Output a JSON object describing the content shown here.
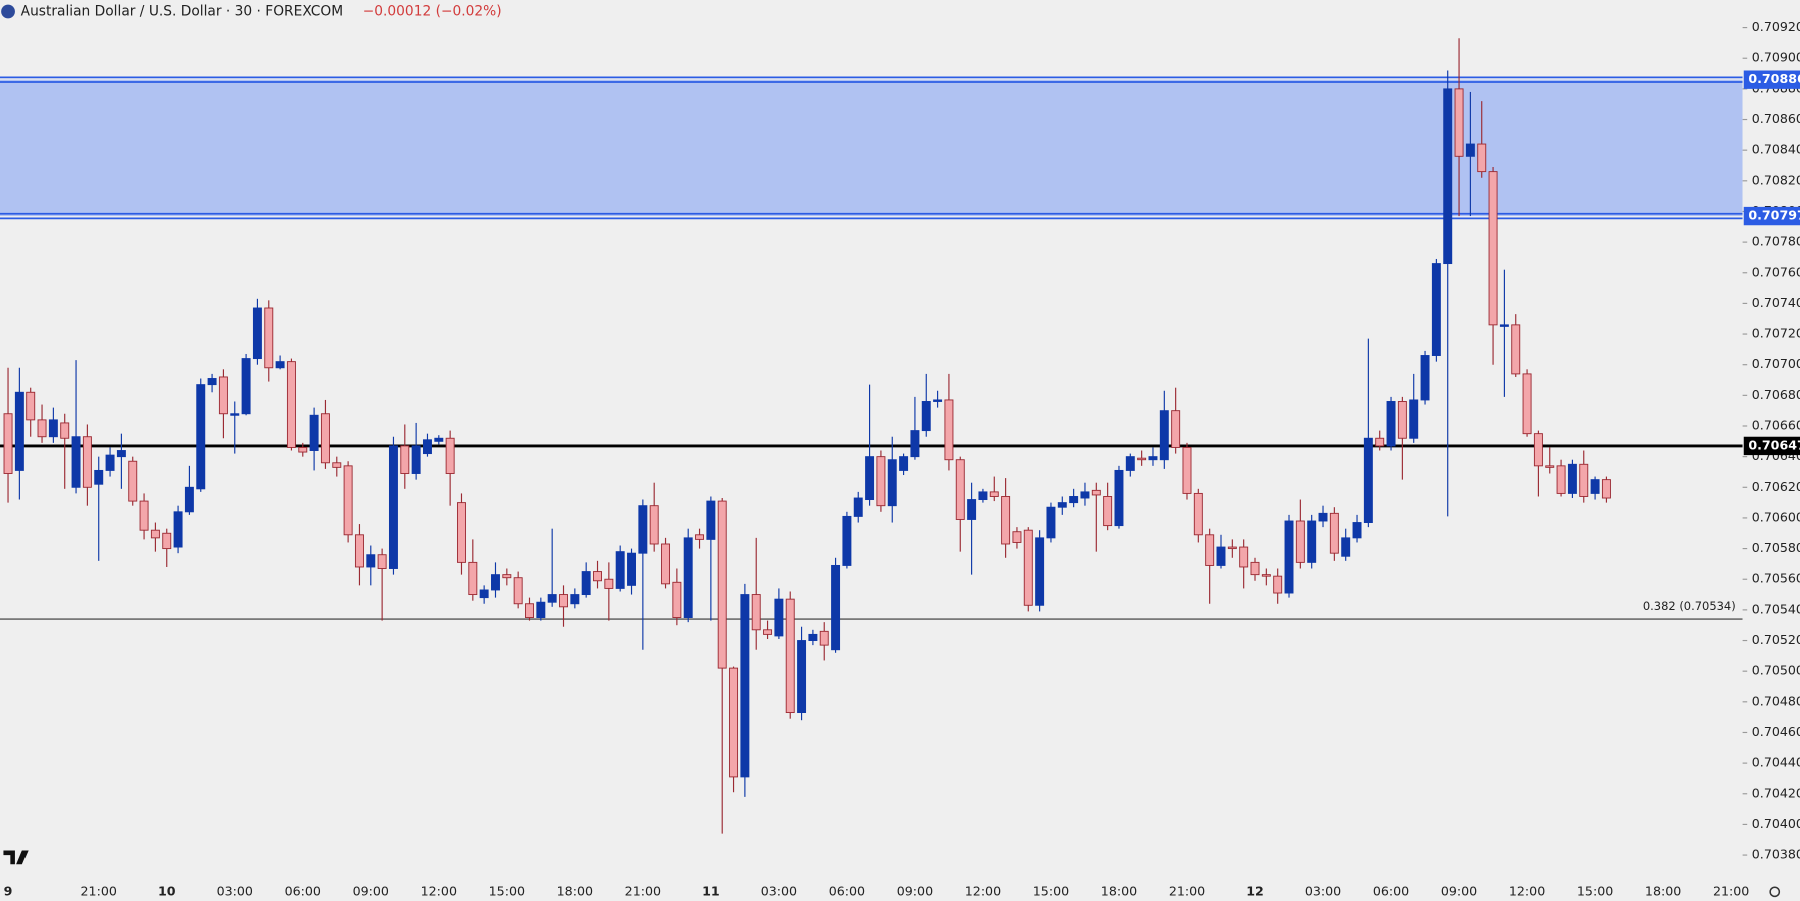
{
  "chart_data": {
    "type": "candlestick",
    "title": "Australian Dollar / U.S. Dollar · 30 · FOREXCOM",
    "change": "−0.00012 (−0.02%)",
    "categories": [
      "9",
      null,
      null,
      null,
      null,
      null,
      null,
      null,
      "21:00",
      null,
      null,
      null,
      null,
      null,
      "10",
      null,
      null,
      null,
      null,
      null,
      "03:00",
      null,
      null,
      null,
      null,
      null,
      "06:00",
      null,
      null,
      null,
      null,
      null,
      "09:00",
      null,
      null,
      null,
      null,
      null,
      "12:00",
      null,
      null,
      null,
      null,
      null,
      "15:00",
      null,
      null,
      null,
      null,
      null,
      "18:00",
      null,
      null,
      null,
      null,
      null,
      "21:00",
      null,
      null,
      null,
      null,
      null,
      "11",
      null,
      null,
      null,
      null,
      null,
      "03:00",
      null,
      null,
      null,
      null,
      null,
      "06:00",
      null,
      null,
      null,
      null,
      null,
      "09:00",
      null,
      null,
      null,
      null,
      null,
      "12:00",
      null,
      null,
      null,
      null,
      null,
      "15:00",
      null,
      null,
      null,
      null,
      null,
      "18:00",
      null,
      null,
      null,
      null,
      null,
      "21:00",
      null,
      null,
      null,
      null,
      null,
      "12",
      null,
      null,
      null,
      null,
      null,
      "03:00",
      null,
      null,
      null,
      null,
      null,
      "06:00",
      null,
      null,
      null,
      null,
      null,
      "09:00",
      null,
      null,
      null,
      null,
      null,
      "12:00",
      null,
      null,
      null,
      null,
      null,
      "15:00",
      null,
      null,
      null,
      null,
      null,
      "18:00",
      null,
      null,
      null,
      null,
      null,
      "21:00"
    ],
    "open": [
      0.70668,
      0.70631,
      0.70682,
      0.70664,
      0.70653,
      0.70662,
      0.7062,
      0.70653,
      0.70622,
      0.70631,
      0.7064,
      0.70637,
      0.70611,
      0.70592,
      0.7059,
      0.70581,
      0.70604,
      0.70619,
      0.70687,
      0.70692,
      0.70667,
      0.70668,
      0.70704,
      0.70737,
      0.70698,
      0.70702,
      0.70646,
      0.70644,
      0.70668,
      0.70636,
      0.70634,
      0.70589,
      0.70568,
      0.70576,
      0.70567,
      0.70647,
      0.70629,
      0.70642,
      0.7065,
      0.70652,
      0.7061,
      0.70571,
      0.70548,
      0.70553,
      0.70563,
      0.70561,
      0.70544,
      0.70535,
      0.70545,
      0.7055,
      0.70544,
      0.7055,
      0.70565,
      0.7056,
      0.70554,
      0.70556,
      0.70577,
      0.70608,
      0.70583,
      0.70558,
      0.70535,
      0.70589,
      0.70586,
      0.70611,
      0.70502,
      0.70431,
      0.7055,
      0.70527,
      0.70523,
      0.70547,
      0.70473,
      0.7052,
      0.70526,
      0.70514,
      0.70569,
      0.70601,
      0.70612,
      0.7064,
      0.70608,
      0.70631,
      0.7064,
      0.70657,
      0.70676,
      0.70677,
      0.70638,
      0.70599,
      0.70612,
      0.70617,
      0.70614,
      0.70591,
      0.70592,
      0.70543,
      0.70587,
      0.70607,
      0.7061,
      0.70613,
      0.70618,
      0.70614,
      0.70595,
      0.70631,
      0.70639,
      0.70638,
      0.70638,
      0.7067,
      0.70646,
      0.70616,
      0.70589,
      0.70569,
      0.70581,
      0.70581,
      0.70571,
      0.70563,
      0.70562,
      0.70551,
      0.70598,
      0.70571,
      0.70598,
      0.70603,
      0.70575,
      0.70587,
      0.70597,
      0.70652,
      0.70647,
      0.70676,
      0.70652,
      0.70677,
      0.70706,
      0.70766,
      0.7088,
      0.70836,
      0.70844,
      0.70826,
      0.70725,
      0.70726,
      0.70694,
      0.70655,
      0.70634,
      0.70634,
      0.70616,
      0.70635,
      0.70616,
      0.70625,
      null,
      null,
      null,
      null,
      null,
      null,
      null,
      null,
      null,
      null,
      null
    ],
    "high": [
      0.70698,
      0.70698,
      0.70685,
      0.70674,
      0.70672,
      0.70668,
      0.70703,
      0.70661,
      0.7064,
      0.70646,
      0.70655,
      0.7064,
      0.70616,
      0.70597,
      0.70593,
      0.70608,
      0.70634,
      0.70691,
      0.70694,
      0.70697,
      0.70676,
      0.70707,
      0.70743,
      0.70742,
      0.70706,
      0.70704,
      0.70649,
      0.70672,
      0.70677,
      0.7064,
      0.70637,
      0.70596,
      0.70582,
      0.7058,
      0.70653,
      0.70661,
      0.70662,
      0.70655,
      0.70654,
      0.70657,
      0.70616,
      0.70586,
      0.70556,
      0.70571,
      0.70567,
      0.70565,
      0.70548,
      0.70548,
      0.70593,
      0.70556,
      0.70554,
      0.70571,
      0.70572,
      0.70571,
      0.70582,
      0.7058,
      0.70612,
      0.70623,
      0.70587,
      0.70567,
      0.70593,
      0.70593,
      0.70614,
      0.70613,
      0.70503,
      0.70557,
      0.70587,
      0.70533,
      0.70554,
      0.70552,
      0.70529,
      0.70527,
      0.70532,
      0.70574,
      0.70604,
      0.70617,
      0.70687,
      0.70644,
      0.70653,
      0.70642,
      0.70679,
      0.70694,
      0.70683,
      0.70694,
      0.7064,
      0.70623,
      0.70619,
      0.70627,
      0.70626,
      0.70594,
      0.70594,
      0.70592,
      0.7061,
      0.70614,
      0.70619,
      0.70623,
      0.70623,
      0.70623,
      0.70634,
      0.70642,
      0.70644,
      0.70646,
      0.70683,
      0.70685,
      0.70649,
      0.70619,
      0.70593,
      0.70589,
      0.70586,
      0.70586,
      0.70574,
      0.70567,
      0.70567,
      0.70602,
      0.70612,
      0.70602,
      0.70608,
      0.70607,
      0.70593,
      0.70602,
      0.70717,
      0.70657,
      0.70679,
      0.70679,
      0.70694,
      0.70709,
      0.70769,
      0.70892,
      0.70913,
      0.70878,
      0.70872,
      0.70829,
      0.70762,
      0.70733,
      0.70697,
      0.70657,
      0.70646,
      0.70638,
      0.70638,
      0.70644,
      0.70627,
      0.70627,
      null,
      null,
      null,
      null,
      null,
      null,
      null,
      null,
      null,
      null,
      null
    ],
    "low": [
      0.7061,
      0.70612,
      0.70653,
      0.70649,
      0.70649,
      0.70619,
      0.70616,
      0.70608,
      0.70572,
      0.70627,
      0.70619,
      0.70608,
      0.70586,
      0.70578,
      0.70568,
      0.70577,
      0.70602,
      0.70617,
      0.70682,
      0.70652,
      0.70642,
      0.70667,
      0.707,
      0.70689,
      0.70697,
      0.70644,
      0.7064,
      0.70631,
      0.70632,
      0.70627,
      0.70584,
      0.70556,
      0.70556,
      0.70533,
      0.70563,
      0.70619,
      0.70625,
      0.7064,
      0.70648,
      0.70608,
      0.70563,
      0.70546,
      0.70544,
      0.70548,
      0.70556,
      0.70541,
      0.70533,
      0.70533,
      0.70542,
      0.70529,
      0.70541,
      0.70548,
      0.70554,
      0.70533,
      0.70552,
      0.7055,
      0.70514,
      0.70578,
      0.70554,
      0.7053,
      0.70532,
      0.7058,
      0.70533,
      0.70394,
      0.70421,
      0.70418,
      0.70514,
      0.70521,
      0.70521,
      0.70469,
      0.70468,
      0.70517,
      0.70507,
      0.70512,
      0.70567,
      0.70597,
      0.70608,
      0.70604,
      0.70597,
      0.70628,
      0.70638,
      0.70653,
      0.70672,
      0.70631,
      0.70578,
      0.70563,
      0.7061,
      0.70611,
      0.70574,
      0.7058,
      0.70539,
      0.70539,
      0.70584,
      0.70602,
      0.70607,
      0.70608,
      0.70578,
      0.70592,
      0.70593,
      0.70627,
      0.70634,
      0.70634,
      0.70632,
      0.70642,
      0.70612,
      0.70584,
      0.70544,
      0.70567,
      0.70574,
      0.70554,
      0.70559,
      0.70556,
      0.70544,
      0.70548,
      0.70567,
      0.70567,
      0.70594,
      0.70572,
      0.70572,
      0.70584,
      0.70594,
      0.70644,
      0.70644,
      0.70625,
      0.70649,
      0.70674,
      0.70702,
      0.70601,
      0.70797,
      0.70797,
      0.70822,
      0.707,
      0.70679,
      0.70692,
      0.70653,
      0.70614,
      0.70629,
      0.70614,
      0.70613,
      0.7061,
      0.70612,
      0.7061,
      null,
      null,
      null,
      null,
      null,
      null,
      null,
      null,
      null,
      null,
      null
    ],
    "close": [
      0.70629,
      0.70682,
      0.70664,
      0.70653,
      0.70664,
      0.70652,
      0.70653,
      0.7062,
      0.70631,
      0.70641,
      0.70644,
      0.70611,
      0.70592,
      0.70587,
      0.7058,
      0.70604,
      0.7062,
      0.70687,
      0.70691,
      0.70668,
      0.70668,
      0.70704,
      0.70737,
      0.70698,
      0.70702,
      0.70646,
      0.70643,
      0.70667,
      0.70636,
      0.70633,
      0.70589,
      0.70568,
      0.70576,
      0.70567,
      0.70647,
      0.70629,
      0.70647,
      0.70651,
      0.70652,
      0.70629,
      0.70571,
      0.7055,
      0.70553,
      0.70563,
      0.70561,
      0.70544,
      0.70535,
      0.70545,
      0.7055,
      0.70542,
      0.7055,
      0.70565,
      0.70559,
      0.70554,
      0.70578,
      0.70577,
      0.70608,
      0.70583,
      0.70557,
      0.70535,
      0.70587,
      0.70586,
      0.70611,
      0.70502,
      0.70431,
      0.7055,
      0.70527,
      0.70524,
      0.70547,
      0.70473,
      0.7052,
      0.70524,
      0.70517,
      0.70569,
      0.70601,
      0.70613,
      0.7064,
      0.70608,
      0.70638,
      0.7064,
      0.70657,
      0.70676,
      0.70677,
      0.70638,
      0.70599,
      0.70612,
      0.70617,
      0.70614,
      0.70583,
      0.70584,
      0.70543,
      0.70587,
      0.70607,
      0.7061,
      0.70614,
      0.70617,
      0.70615,
      0.70595,
      0.70631,
      0.7064,
      0.70638,
      0.7064,
      0.7067,
      0.70646,
      0.70616,
      0.70589,
      0.70569,
      0.70581,
      0.7058,
      0.70568,
      0.70563,
      0.70562,
      0.70551,
      0.70598,
      0.70571,
      0.70598,
      0.70603,
      0.70577,
      0.70587,
      0.70597,
      0.70652,
      0.70647,
      0.70676,
      0.70652,
      0.70677,
      0.70706,
      0.70766,
      0.7088,
      0.70836,
      0.70844,
      0.70826,
      0.70726,
      0.70726,
      0.70694,
      0.70655,
      0.70634,
      0.70633,
      0.70616,
      0.70635,
      0.70614,
      0.70625,
      0.70613,
      null,
      null,
      null,
      null,
      null,
      null,
      null,
      null,
      null,
      null,
      null
    ],
    "up_color": "#0e38a8",
    "down_color": "#f3a6aa",
    "down_line_color": "#9b2a33",
    "ylim": [
      0.70365,
      0.70938
    ],
    "yticks": [
      {
        "value": 0.7038,
        "label": "0.70380"
      },
      {
        "value": 0.704,
        "label": "0.70400"
      },
      {
        "value": 0.7042,
        "label": "0.70420"
      },
      {
        "value": 0.7044,
        "label": "0.70440"
      },
      {
        "value": 0.7046,
        "label": "0.70460"
      },
      {
        "value": 0.7048,
        "label": "0.70480"
      },
      {
        "value": 0.705,
        "label": "0.70500"
      },
      {
        "value": 0.7052,
        "label": "0.70520"
      },
      {
        "value": 0.7054,
        "label": "0.70540"
      },
      {
        "value": 0.7056,
        "label": "0.70560"
      },
      {
        "value": 0.7058,
        "label": "0.70580"
      },
      {
        "value": 0.706,
        "label": "0.70600"
      },
      {
        "value": 0.7062,
        "label": "0.70620"
      },
      {
        "value": 0.7064,
        "label": "0.70640"
      },
      {
        "value": 0.7066,
        "label": "0.70660"
      },
      {
        "value": 0.7068,
        "label": "0.70680"
      },
      {
        "value": 0.707,
        "label": "0.70700"
      },
      {
        "value": 0.7072,
        "label": "0.70720"
      },
      {
        "value": 0.7074,
        "label": "0.70740"
      },
      {
        "value": 0.7076,
        "label": "0.70760"
      },
      {
        "value": 0.7078,
        "label": "0.70780"
      },
      {
        "value": 0.708,
        "label": "0.70800"
      },
      {
        "value": 0.7082,
        "label": "0.70820"
      },
      {
        "value": 0.7084,
        "label": "0.70840"
      },
      {
        "value": 0.7086,
        "label": "0.70860"
      },
      {
        "value": 0.7088,
        "label": "0.70880"
      },
      {
        "value": 0.709,
        "label": "0.70900"
      },
      {
        "value": 0.7092,
        "label": "0.70920"
      }
    ],
    "grid": false,
    "zone": {
      "top": 0.70886,
      "bottom": 0.70797,
      "color": "#b0c2f2",
      "line_color": "#2c5ce4"
    },
    "level": {
      "value": 0.70647,
      "color": "#000000"
    },
    "fib": {
      "value": 0.70534,
      "label": "0.382 (0.70534)",
      "color": "#333333"
    }
  }
}
